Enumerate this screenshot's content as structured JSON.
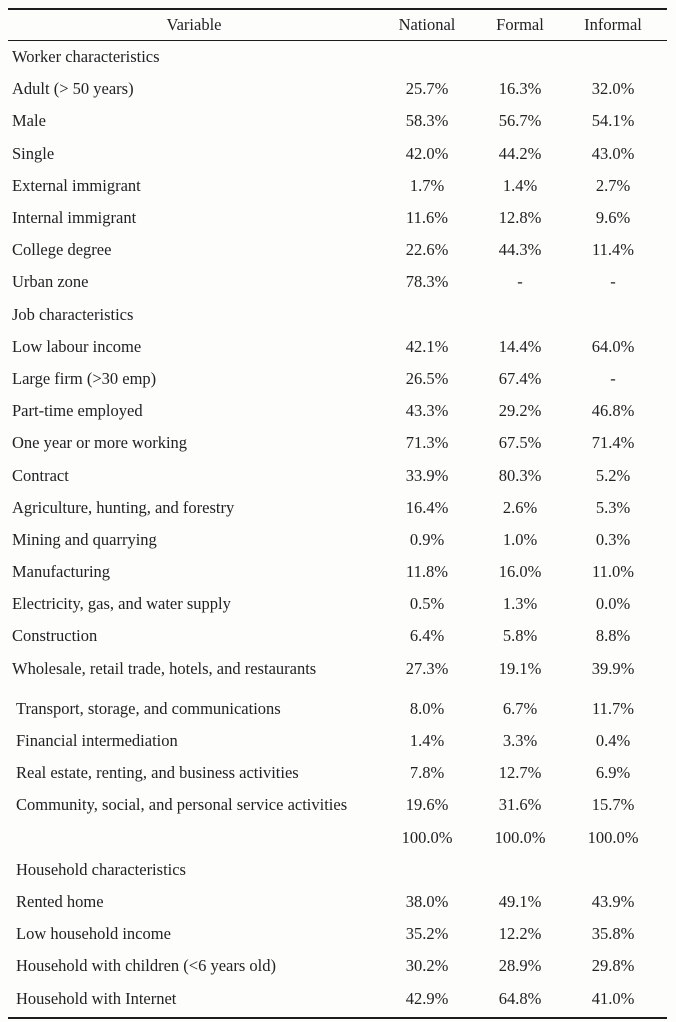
{
  "table": {
    "headers": {
      "variable": "Variable",
      "national": "National",
      "formal": "Formal",
      "informal": "Informal"
    },
    "rows": [
      {
        "label": "Worker characteristics",
        "national": "",
        "formal": "",
        "informal": ""
      },
      {
        "label": "Adult (> 50 years)",
        "national": "25.7%",
        "formal": "16.3%",
        "informal": "32.0%"
      },
      {
        "label": "Male",
        "national": "58.3%",
        "formal": "56.7%",
        "informal": "54.1%"
      },
      {
        "label": "Single",
        "national": "42.0%",
        "formal": "44.2%",
        "informal": "43.0%"
      },
      {
        "label": "External immigrant",
        "national": "1.7%",
        "formal": "1.4%",
        "informal": "2.7%"
      },
      {
        "label": "Internal immigrant",
        "national": "11.6%",
        "formal": "12.8%",
        "informal": "9.6%"
      },
      {
        "label": "College degree",
        "national": "22.6%",
        "formal": "44.3%",
        "informal": "11.4%"
      },
      {
        "label": "Urban zone",
        "national": "78.3%",
        "formal": "-",
        "informal": "-"
      },
      {
        "label": "Job characteristics",
        "national": "",
        "formal": "",
        "informal": ""
      },
      {
        "label": "Low labour income",
        "national": "42.1%",
        "formal": "14.4%",
        "informal": "64.0%"
      },
      {
        "label": "Large firm (>30 emp)",
        "national": "26.5%",
        "formal": "67.4%",
        "informal": "-"
      },
      {
        "label": "Part-time employed",
        "national": "43.3%",
        "formal": "29.2%",
        "informal": "46.8%"
      },
      {
        "label": "One year or more working",
        "national": "71.3%",
        "formal": "67.5%",
        "informal": "71.4%"
      },
      {
        "label": "Contract",
        "national": "33.9%",
        "formal": "80.3%",
        "informal": "5.2%"
      },
      {
        "label": "Agriculture, hunting, and forestry",
        "national": "16.4%",
        "formal": "2.6%",
        "informal": "5.3%"
      },
      {
        "label": "Mining and quarrying",
        "national": "0.9%",
        "formal": "1.0%",
        "informal": "0.3%"
      },
      {
        "label": "Manufacturing",
        "national": "11.8%",
        "formal": "16.0%",
        "informal": "11.0%"
      },
      {
        "label": "Electricity, gas, and water supply",
        "national": "0.5%",
        "formal": "1.3%",
        "informal": "0.0%"
      },
      {
        "label": "Construction",
        "national": "6.4%",
        "formal": "5.8%",
        "informal": "8.8%"
      },
      {
        "label": "Wholesale, retail trade, hotels, and restaurants",
        "national": "27.3%",
        "formal": "19.1%",
        "informal": "39.9%"
      },
      {
        "label": "Transport, storage, and communications",
        "national": "8.0%",
        "formal": "6.7%",
        "informal": "11.7%"
      },
      {
        "label": "Financial intermediation",
        "national": "1.4%",
        "formal": "3.3%",
        "informal": "0.4%"
      },
      {
        "label": "Real estate, renting, and business activities",
        "national": "7.8%",
        "formal": "12.7%",
        "informal": "6.9%"
      },
      {
        "label": "Community, social, and personal service activities",
        "national": "19.6%",
        "formal": "31.6%",
        "informal": "15.7%"
      },
      {
        "label": "",
        "national": "100.0%",
        "formal": "100.0%",
        "informal": "100.0%"
      },
      {
        "label": "Household characteristics",
        "national": "",
        "formal": "",
        "informal": ""
      },
      {
        "label": "Rented home",
        "national": "38.0%",
        "formal": "49.1%",
        "informal": "43.9%"
      },
      {
        "label": "Low household income",
        "national": "35.2%",
        "formal": "12.2%",
        "informal": "35.8%"
      },
      {
        "label": "Household with children (<6 years old)",
        "national": "30.2%",
        "formal": "28.9%",
        "informal": "29.8%"
      },
      {
        "label": "Household with Internet",
        "national": "42.9%",
        "formal": "64.8%",
        "informal": "41.0%"
      }
    ]
  },
  "colors": {
    "background": "#fdfdfc",
    "text": "#222222",
    "rule": "#1c1c1c"
  }
}
